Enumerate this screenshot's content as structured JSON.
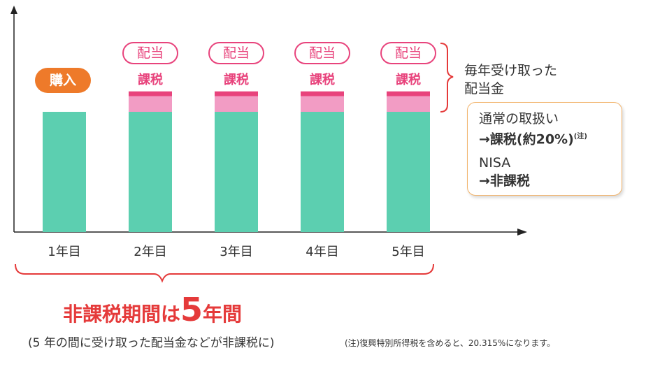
{
  "chart_data": {
    "type": "bar",
    "categories": [
      "1年目",
      "2年目",
      "3年目",
      "4年目",
      "5年目"
    ],
    "series": [
      {
        "values": [
          1,
          1,
          1,
          1,
          1
        ],
        "color": "#5ccfb0"
      },
      {
        "values": [
          0,
          0.13,
          0.13,
          0.13,
          0.13
        ],
        "color": "#f29cc4"
      },
      {
        "values": [
          0,
          0.04,
          0.04,
          0.04,
          0.04
        ],
        "color": "#e8437c"
      }
    ],
    "xlabel": "",
    "ylabel": "",
    "bar_labels": {
      "purchase": "購入",
      "dividend": "配当",
      "tax": "課税"
    }
  },
  "side_label": {
    "line1": "毎年受け取った",
    "line2": "配当金"
  },
  "info_box": {
    "normal_title": "通常の取扱い",
    "normal_value": "→課税(約20%)",
    "normal_note": "(注)",
    "nisa_title": "NISA",
    "nisa_value": "→非課税"
  },
  "period": {
    "prefix": "非課税期間は",
    "number": "5",
    "suffix": "年間",
    "note": "(5 年の間に受け取った配当金などが非課税に)"
  },
  "footnote": "(注)復興特別所得税を含めると、20.315%になります。",
  "colors": {
    "base": "#5ccfb0",
    "dividend": "#f29cc4",
    "tax": "#e8437c",
    "purchase": "#ee7a2a",
    "brace": "#e53a3a",
    "info_border": "#f2b36a"
  }
}
